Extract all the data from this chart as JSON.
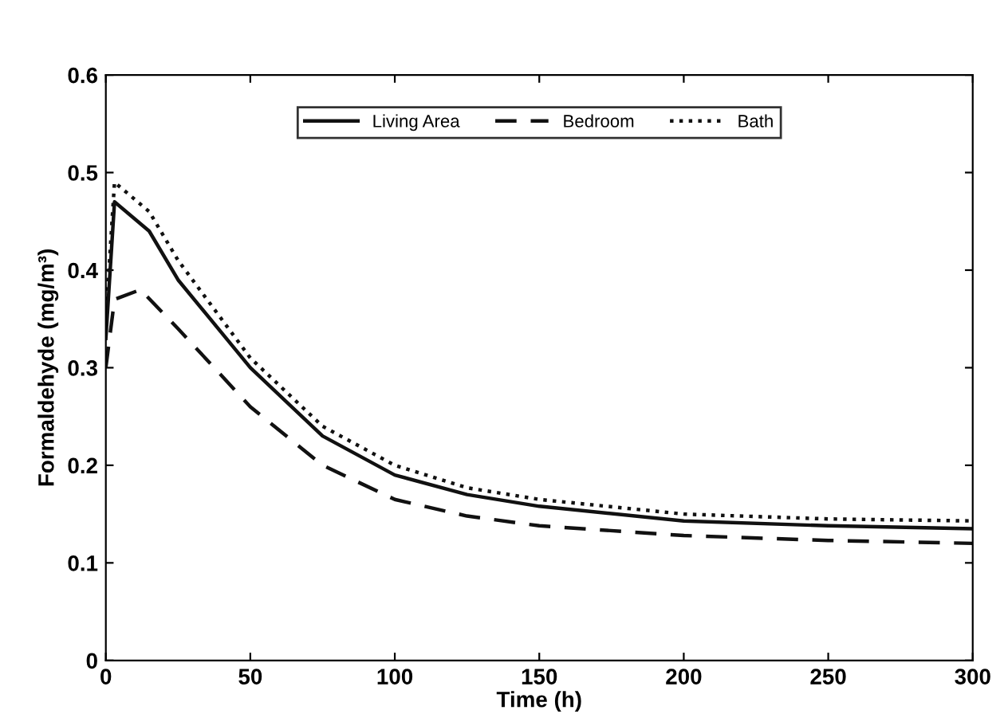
{
  "chart_data": {
    "type": "line",
    "xlabel": "Time (h)",
    "ylabel": "Formaldehyde (mg/m³)",
    "xlim": [
      0,
      300
    ],
    "ylim": [
      0,
      0.6
    ],
    "xticks": [
      0,
      50,
      100,
      150,
      200,
      250,
      300
    ],
    "yticks": [
      0,
      0.1,
      0.2,
      0.3,
      0.4,
      0.5,
      0.6
    ],
    "grid": false,
    "legend": "top",
    "marker": "none",
    "series": [
      {
        "name": "Living Area",
        "color": "#111111",
        "line_style": "solid",
        "x": [
          0,
          3,
          15,
          25,
          50,
          75,
          100,
          125,
          150,
          200,
          250,
          300
        ],
        "values": [
          0.33,
          0.47,
          0.44,
          0.39,
          0.3,
          0.23,
          0.19,
          0.17,
          0.158,
          0.143,
          0.138,
          0.135
        ]
      },
      {
        "name": "Bedroom",
        "color": "#111111",
        "line_style": "dashed",
        "x": [
          0,
          3,
          12,
          25,
          50,
          75,
          100,
          125,
          150,
          200,
          250,
          300
        ],
        "values": [
          0.3,
          0.37,
          0.38,
          0.34,
          0.26,
          0.2,
          0.165,
          0.148,
          0.138,
          0.128,
          0.123,
          0.12
        ]
      },
      {
        "name": "Bath",
        "color": "#111111",
        "line_style": "dotted",
        "x": [
          0,
          3,
          15,
          25,
          50,
          75,
          100,
          125,
          150,
          200,
          250,
          300
        ],
        "values": [
          0.35,
          0.49,
          0.46,
          0.41,
          0.31,
          0.24,
          0.2,
          0.177,
          0.165,
          0.15,
          0.145,
          0.143
        ]
      }
    ]
  }
}
